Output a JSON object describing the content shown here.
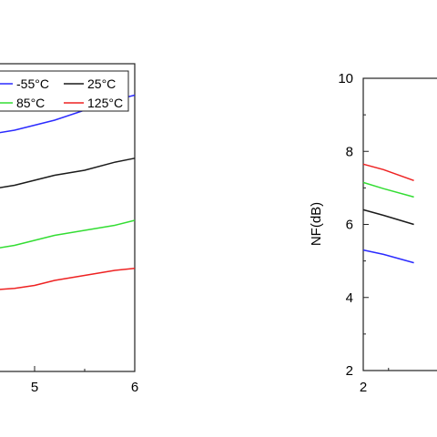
{
  "chart_data": [
    {
      "type": "line",
      "title": "",
      "xlabel": "",
      "ylabel": "",
      "x_ticks": [
        "5",
        "6"
      ],
      "grid": false,
      "legend_position": "top",
      "legend": [
        {
          "name": "-55°C",
          "color": "#2b2bff"
        },
        {
          "name": "25°C",
          "color": "#1a1a1a"
        },
        {
          "name": "85°C",
          "color": "#33dd33"
        },
        {
          "name": "125°C",
          "color": "#ee2222"
        }
      ],
      "series": [
        {
          "name": "-55°C",
          "color": "#2b2bff",
          "x": [
            4.0,
            4.2,
            4.5,
            4.8,
            5.0,
            5.2,
            5.5,
            5.8,
            6.0
          ],
          "y": [
            7.05,
            7.1,
            7.15,
            7.2,
            7.25,
            7.3,
            7.4,
            7.5,
            7.55
          ]
        },
        {
          "name": "25°C",
          "color": "#1a1a1a",
          "x": [
            4.0,
            4.2,
            4.5,
            4.8,
            5.0,
            5.2,
            5.5,
            5.8,
            6.0
          ],
          "y": [
            6.5,
            6.55,
            6.6,
            6.65,
            6.7,
            6.75,
            6.8,
            6.88,
            6.92
          ]
        },
        {
          "name": "85°C",
          "color": "#33dd33",
          "x": [
            4.0,
            4.2,
            4.5,
            4.8,
            5.0,
            5.2,
            5.5,
            5.8,
            6.0
          ],
          "y": [
            5.9,
            5.95,
            6.0,
            6.05,
            6.1,
            6.15,
            6.2,
            6.25,
            6.3
          ]
        },
        {
          "name": "125°C",
          "color": "#ee2222",
          "x": [
            4.0,
            4.2,
            4.5,
            4.8,
            5.0,
            5.2,
            5.5,
            5.8,
            6.0
          ],
          "y": [
            5.5,
            5.55,
            5.6,
            5.62,
            5.65,
            5.7,
            5.75,
            5.8,
            5.82
          ]
        }
      ]
    },
    {
      "type": "line",
      "title": "",
      "xlabel": "",
      "ylabel": "NF(dB)",
      "ylim": [
        2,
        10
      ],
      "y_ticks": [
        "2",
        "4",
        "6",
        "8",
        "10"
      ],
      "x_ticks": [
        "2"
      ],
      "grid": false,
      "series": [
        {
          "name": "",
          "color": "#ee2222",
          "x": [
            2.0,
            2.4,
            3.0
          ],
          "y": [
            7.65,
            7.5,
            7.2
          ]
        },
        {
          "name": "",
          "color": "#33dd33",
          "x": [
            2.0,
            2.4,
            3.0
          ],
          "y": [
            7.15,
            6.98,
            6.75
          ]
        },
        {
          "name": "",
          "color": "#1a1a1a",
          "x": [
            2.0,
            2.4,
            3.0
          ],
          "y": [
            6.4,
            6.25,
            6.0
          ]
        },
        {
          "name": "",
          "color": "#2b2bff",
          "x": [
            2.0,
            2.4,
            3.0
          ],
          "y": [
            5.3,
            5.18,
            4.95
          ]
        }
      ]
    }
  ]
}
